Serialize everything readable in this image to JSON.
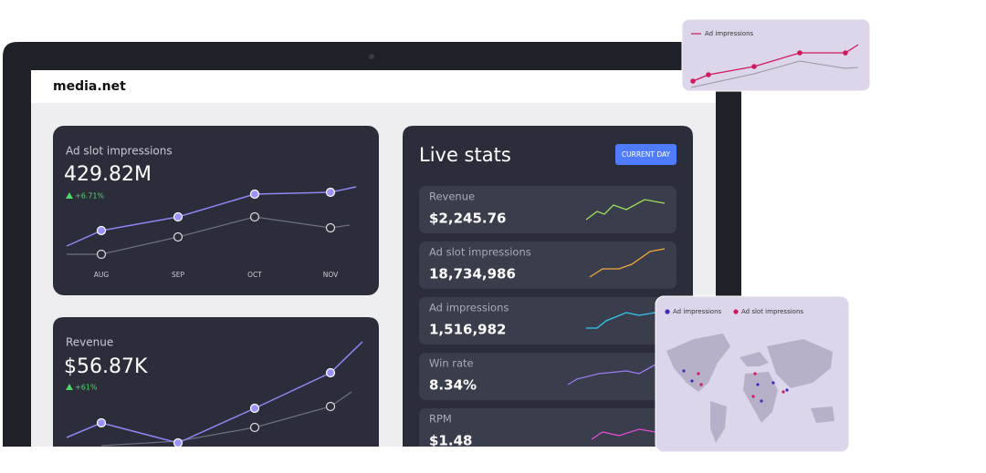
{
  "header": {
    "logo": "media.net"
  },
  "cards": [
    {
      "title": "Ad slot impressions",
      "value": "429.82M",
      "change": "+6.71%",
      "months": [
        "AUG",
        "SEP",
        "OCT",
        "NOV"
      ]
    },
    {
      "title": "Revenue",
      "value": "$56.87K",
      "change": "+61%"
    }
  ],
  "live_stats": {
    "title": "Live stats",
    "button": "CURRENT DAY",
    "rows": [
      {
        "label": "Revenue",
        "value": "$2,245.76"
      },
      {
        "label": "Ad slot impressions",
        "value": "18,734,986"
      },
      {
        "label": "Ad impressions",
        "value": "1,516,982"
      },
      {
        "label": "Win rate",
        "value": "8.34%"
      },
      {
        "label": "RPM",
        "value": "$1.48"
      }
    ]
  },
  "popup": {
    "legend": "Ad impressions"
  },
  "map": {
    "legend": [
      "Ad impressions",
      "Ad slot impressions"
    ]
  }
}
